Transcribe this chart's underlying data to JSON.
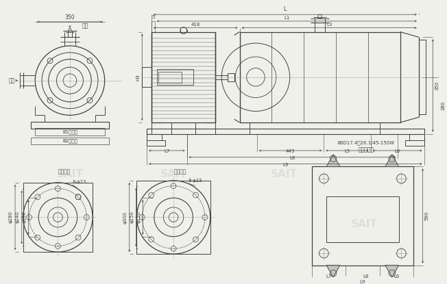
{
  "bg_color": "#f0f0eb",
  "line_color": "#404040",
  "dim_color": "#404040",
  "font_size_tiny": 5.0,
  "font_size_small": 5.5,
  "font_size_medium": 6.5,
  "watermark_color": "#c8c8c8",
  "watermark_alpha": 0.45,
  "xbd_label": "XBD17.4～26.1/45-150W",
  "base_label": "单泵用底座",
  "suction_label": "吸入法兰",
  "discharge_label": "吐出法兰",
  "spit_label": "吐出",
  "suck_label": "吸入",
  "b1_label": "B1电机端",
  "b2_label": "B2水泵端"
}
